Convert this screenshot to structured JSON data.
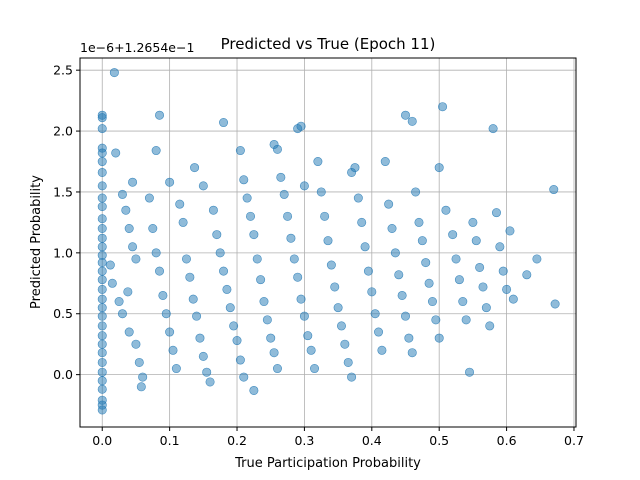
{
  "chart_data": {
    "type": "scatter",
    "title": "Predicted vs True (Epoch 11)",
    "xlabel": "True Participation Probability",
    "ylabel": "Predicted Probability",
    "y_offset_label": "1e−6+1.2654e−1",
    "xlim": [
      -0.033,
      0.703
    ],
    "ylim": [
      -0.43,
      2.6
    ],
    "x_ticks": [
      0.0,
      0.1,
      0.2,
      0.3,
      0.4,
      0.5,
      0.6,
      0.7
    ],
    "x_tick_labels": [
      "0.0",
      "0.1",
      "0.2",
      "0.3",
      "0.4",
      "0.5",
      "0.6",
      "0.7"
    ],
    "y_ticks": [
      0.0,
      0.5,
      1.0,
      1.5,
      2.0,
      2.5
    ],
    "y_tick_labels": [
      "0.0",
      "0.5",
      "1.0",
      "1.5",
      "2.0",
      "2.5"
    ],
    "grid": true,
    "point_color": "#1f77b4",
    "point_opacity": 0.5,
    "series": [
      {
        "points": [
          [
            0.0,
            2.13
          ],
          [
            0.0,
            2.11
          ],
          [
            0.0,
            2.02
          ],
          [
            0.0,
            1.86
          ],
          [
            0.0,
            1.82
          ],
          [
            0.0,
            1.75
          ],
          [
            0.0,
            1.66
          ],
          [
            0.0,
            1.55
          ],
          [
            0.0,
            1.45
          ],
          [
            0.0,
            1.38
          ],
          [
            0.0,
            1.28
          ],
          [
            0.0,
            1.2
          ],
          [
            0.0,
            1.12
          ],
          [
            0.0,
            1.05
          ],
          [
            0.0,
            0.98
          ],
          [
            0.0,
            0.92
          ],
          [
            0.0,
            0.85
          ],
          [
            0.0,
            0.78
          ],
          [
            0.0,
            0.7
          ],
          [
            0.0,
            0.62
          ],
          [
            0.0,
            0.55
          ],
          [
            0.0,
            0.48
          ],
          [
            0.0,
            0.4
          ],
          [
            0.0,
            0.32
          ],
          [
            0.0,
            0.25
          ],
          [
            0.0,
            0.18
          ],
          [
            0.0,
            0.1
          ],
          [
            0.0,
            0.02
          ],
          [
            0.0,
            -0.05
          ],
          [
            0.0,
            -0.12
          ],
          [
            0.0,
            -0.21
          ],
          [
            0.0,
            -0.25
          ],
          [
            0.0,
            -0.29
          ],
          [
            0.018,
            2.48
          ],
          [
            0.02,
            1.82
          ],
          [
            0.03,
            1.48
          ],
          [
            0.035,
            1.35
          ],
          [
            0.04,
            1.2
          ],
          [
            0.045,
            1.05
          ],
          [
            0.05,
            0.95
          ],
          [
            0.012,
            0.9
          ],
          [
            0.015,
            0.75
          ],
          [
            0.025,
            0.6
          ],
          [
            0.03,
            0.5
          ],
          [
            0.04,
            0.35
          ],
          [
            0.05,
            0.25
          ],
          [
            0.055,
            0.1
          ],
          [
            0.06,
            -0.02
          ],
          [
            0.058,
            -0.1
          ],
          [
            0.038,
            0.68
          ],
          [
            0.045,
            1.58
          ],
          [
            0.07,
            1.45
          ],
          [
            0.075,
            1.2
          ],
          [
            0.08,
            1.0
          ],
          [
            0.085,
            0.85
          ],
          [
            0.09,
            0.65
          ],
          [
            0.095,
            0.5
          ],
          [
            0.1,
            0.35
          ],
          [
            0.105,
            0.2
          ],
          [
            0.11,
            0.05
          ],
          [
            0.085,
            2.13
          ],
          [
            0.08,
            1.84
          ],
          [
            0.1,
            1.58
          ],
          [
            0.115,
            1.4
          ],
          [
            0.12,
            1.25
          ],
          [
            0.125,
            0.95
          ],
          [
            0.13,
            0.8
          ],
          [
            0.135,
            0.62
          ],
          [
            0.14,
            0.48
          ],
          [
            0.145,
            0.3
          ],
          [
            0.15,
            0.15
          ],
          [
            0.155,
            0.02
          ],
          [
            0.16,
            -0.06
          ],
          [
            0.137,
            1.7
          ],
          [
            0.15,
            1.55
          ],
          [
            0.165,
            1.35
          ],
          [
            0.17,
            1.15
          ],
          [
            0.175,
            1.0
          ],
          [
            0.18,
            0.85
          ],
          [
            0.185,
            0.7
          ],
          [
            0.19,
            0.55
          ],
          [
            0.195,
            0.4
          ],
          [
            0.2,
            0.28
          ],
          [
            0.205,
            0.12
          ],
          [
            0.21,
            -0.02
          ],
          [
            0.18,
            2.07
          ],
          [
            0.205,
            1.84
          ],
          [
            0.21,
            1.6
          ],
          [
            0.215,
            1.45
          ],
          [
            0.22,
            1.3
          ],
          [
            0.225,
            1.15
          ],
          [
            0.23,
            0.95
          ],
          [
            0.235,
            0.78
          ],
          [
            0.24,
            0.6
          ],
          [
            0.245,
            0.45
          ],
          [
            0.25,
            0.3
          ],
          [
            0.255,
            0.18
          ],
          [
            0.26,
            0.05
          ],
          [
            0.225,
            -0.13
          ],
          [
            0.255,
            1.89
          ],
          [
            0.26,
            1.85
          ],
          [
            0.265,
            1.62
          ],
          [
            0.27,
            1.48
          ],
          [
            0.275,
            1.3
          ],
          [
            0.28,
            1.12
          ],
          [
            0.285,
            0.95
          ],
          [
            0.29,
            0.8
          ],
          [
            0.295,
            0.62
          ],
          [
            0.3,
            0.48
          ],
          [
            0.305,
            0.32
          ],
          [
            0.31,
            0.2
          ],
          [
            0.315,
            0.05
          ],
          [
            0.29,
            2.02
          ],
          [
            0.295,
            2.04
          ],
          [
            0.3,
            1.55
          ],
          [
            0.32,
            1.75
          ],
          [
            0.325,
            1.5
          ],
          [
            0.33,
            1.3
          ],
          [
            0.335,
            1.1
          ],
          [
            0.34,
            0.9
          ],
          [
            0.345,
            0.72
          ],
          [
            0.35,
            0.55
          ],
          [
            0.355,
            0.4
          ],
          [
            0.36,
            0.25
          ],
          [
            0.365,
            0.1
          ],
          [
            0.37,
            -0.02
          ],
          [
            0.37,
            1.66
          ],
          [
            0.375,
            1.7
          ],
          [
            0.38,
            1.45
          ],
          [
            0.385,
            1.25
          ],
          [
            0.39,
            1.05
          ],
          [
            0.395,
            0.85
          ],
          [
            0.4,
            0.68
          ],
          [
            0.405,
            0.5
          ],
          [
            0.41,
            0.35
          ],
          [
            0.415,
            0.2
          ],
          [
            0.42,
            1.75
          ],
          [
            0.425,
            1.4
          ],
          [
            0.43,
            1.2
          ],
          [
            0.435,
            1.0
          ],
          [
            0.44,
            0.82
          ],
          [
            0.445,
            0.65
          ],
          [
            0.45,
            0.48
          ],
          [
            0.455,
            0.3
          ],
          [
            0.46,
            0.18
          ],
          [
            0.45,
            2.13
          ],
          [
            0.46,
            2.08
          ],
          [
            0.465,
            1.5
          ],
          [
            0.47,
            1.25
          ],
          [
            0.475,
            1.1
          ],
          [
            0.48,
            0.92
          ],
          [
            0.485,
            0.75
          ],
          [
            0.49,
            0.6
          ],
          [
            0.495,
            0.45
          ],
          [
            0.5,
            0.3
          ],
          [
            0.505,
            2.2
          ],
          [
            0.5,
            1.7
          ],
          [
            0.51,
            1.35
          ],
          [
            0.52,
            1.15
          ],
          [
            0.525,
            0.95
          ],
          [
            0.53,
            0.78
          ],
          [
            0.535,
            0.6
          ],
          [
            0.54,
            0.45
          ],
          [
            0.545,
            0.02
          ],
          [
            0.55,
            1.25
          ],
          [
            0.555,
            1.1
          ],
          [
            0.56,
            0.88
          ],
          [
            0.565,
            0.72
          ],
          [
            0.57,
            0.55
          ],
          [
            0.575,
            0.4
          ],
          [
            0.58,
            2.02
          ],
          [
            0.585,
            1.33
          ],
          [
            0.59,
            1.05
          ],
          [
            0.595,
            0.85
          ],
          [
            0.6,
            0.7
          ],
          [
            0.605,
            1.18
          ],
          [
            0.61,
            0.62
          ],
          [
            0.63,
            0.82
          ],
          [
            0.645,
            0.95
          ],
          [
            0.67,
            1.52
          ],
          [
            0.672,
            0.58
          ]
        ]
      }
    ]
  }
}
